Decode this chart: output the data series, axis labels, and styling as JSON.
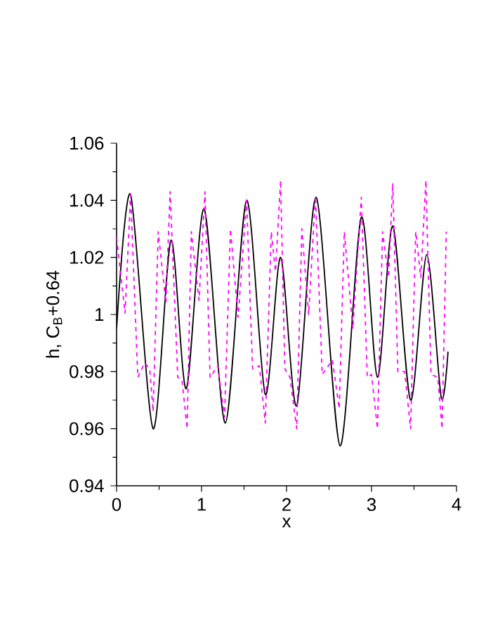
{
  "chart_data": {
    "type": "line",
    "xlabel": "x",
    "ylabel": "h, C$_{B}$+0.64",
    "xlim": [
      0,
      4
    ],
    "ylim": [
      0.94,
      1.06
    ],
    "xticks": [
      0,
      1,
      2,
      3,
      4
    ],
    "yticks": [
      0.94,
      0.96,
      0.98,
      1,
      1.02,
      1.04,
      1.06
    ],
    "marker": "none",
    "series": [
      {
        "color": "#000000",
        "line_style": "solid",
        "x": [
          0,
          0.165,
          0.43,
          0.64,
          0.82,
          1.03,
          1.28,
          1.53,
          1.75,
          1.93,
          2.12,
          2.35,
          2.63,
          2.88,
          3.07,
          3.25,
          3.46,
          3.65,
          3.82,
          3.9
        ],
        "values": [
          0.995,
          1.042,
          0.96,
          1.026,
          0.974,
          1.037,
          0.962,
          1.04,
          0.972,
          1.02,
          0.968,
          1.041,
          0.954,
          1.034,
          0.978,
          1.031,
          0.97,
          1.021,
          0.971,
          0.987
        ]
      },
      {
        "color": "#ff00ff",
        "line_style": "dashed",
        "x": [
          0,
          0.1,
          0.165,
          0.25,
          0.33,
          0.39,
          0.43,
          0.49,
          0.58,
          0.63,
          0.72,
          0.77,
          0.83,
          0.88,
          0.97,
          1.04,
          1.1,
          1.19,
          1.27,
          1.34,
          1.43,
          1.53,
          1.6,
          1.68,
          1.75,
          1.82,
          1.87,
          1.93,
          1.98,
          2.04,
          2.12,
          2.18,
          2.26,
          2.34,
          2.42,
          2.54,
          2.62,
          2.68,
          2.78,
          2.88,
          2.95,
          3.0,
          3.07,
          3.13,
          3.2,
          3.25,
          3.31,
          3.39,
          3.46,
          3.52,
          3.58,
          3.64,
          3.7,
          3.78,
          3.83,
          3.88
        ],
        "values": [
          1.027,
          1.0005,
          1.042,
          0.978,
          0.983,
          0.981,
          0.966,
          1.029,
          1.004,
          1.043,
          0.978,
          0.977,
          0.96,
          1.029,
          1.005,
          1.043,
          0.978,
          0.982,
          0.964,
          1.03,
          0.999,
          1.04,
          0.981,
          0.982,
          0.962,
          1.029,
          1.015,
          1.047,
          0.981,
          0.978,
          0.96,
          1.03,
          1.0,
          1.0415,
          0.979,
          0.984,
          0.967,
          1.029,
          0.995,
          1.041,
          0.978,
          0.979,
          0.96,
          1.029,
          1.013,
          1.046,
          0.98,
          0.98,
          0.96,
          1.029,
          1.013,
          1.047,
          0.979,
          0.978,
          0.96,
          1.029
        ]
      }
    ]
  }
}
